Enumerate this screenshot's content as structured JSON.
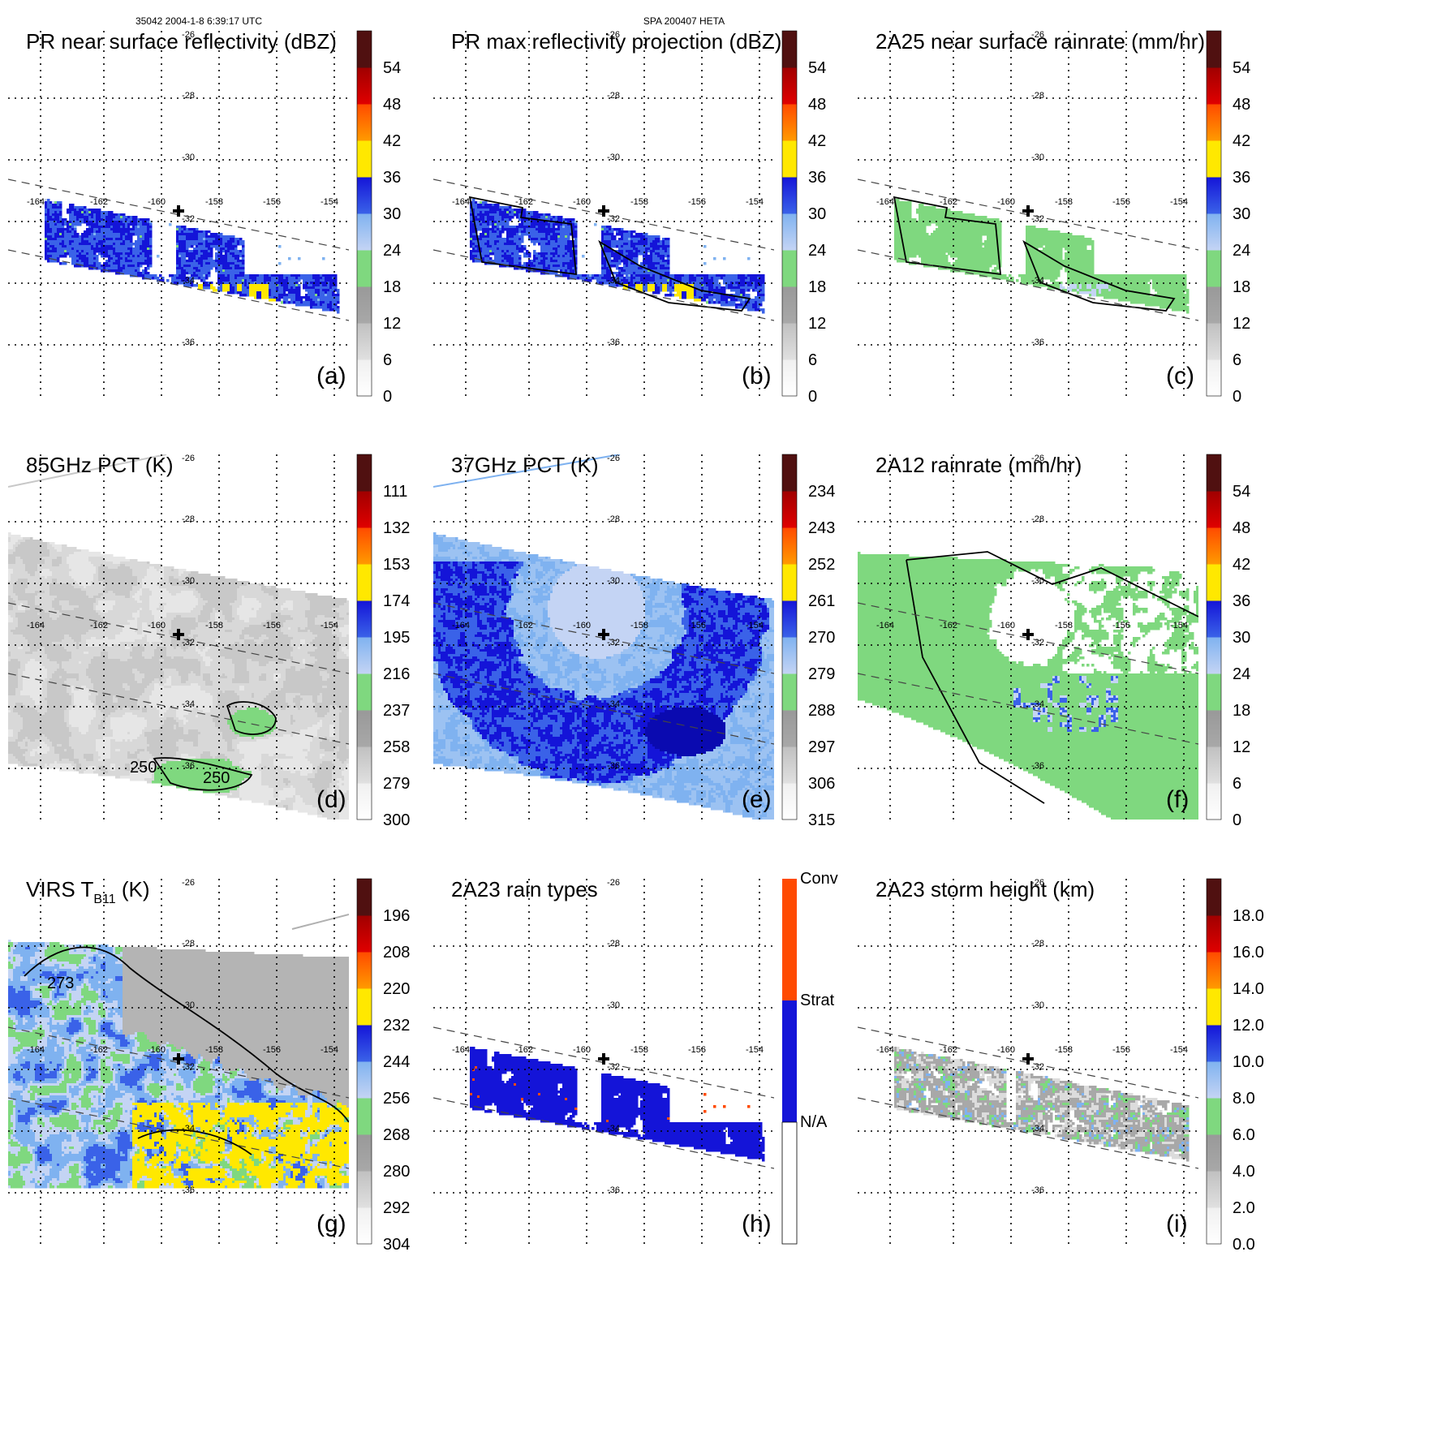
{
  "header": {
    "orbit_time": "35042 2004-1-8 6:39:17 UTC",
    "system": "SPA 200407 HETA"
  },
  "colors": {
    "white": "#ffffff",
    "gray_light": "#dcdcdc",
    "gray": "#a8a8a8",
    "green": "#7fd87f",
    "blue_pale": "#c4d4f4",
    "blue_light": "#7fb2f0",
    "blue": "#3a62e8",
    "blue_dark": "#1414d8",
    "yellow": "#ffe800",
    "orange": "#ff9a00",
    "red_orange": "#ff4a00",
    "red": "#e00000",
    "dark_red": "#a00000",
    "maroon": "#501010",
    "conv": "#ff4a00",
    "strat": "#1414d8",
    "pct85_line": "#c8c8c8",
    "pct37_line": "#7fb2f0",
    "virs_line": "#b0b0b0"
  },
  "map_grid": {
    "lon_labels": [
      "-164",
      "-162",
      "-160",
      "-158",
      "-156",
      "-154"
    ],
    "lat_labels": [
      "-26",
      "-28",
      "-30",
      "-32",
      "-34",
      "-36"
    ],
    "center_marker": "cross-marker"
  },
  "panels": [
    {
      "id": "a",
      "title": "PR near surface reflectivity (dBZ)",
      "letter": "(a)",
      "field": "reflectivity",
      "swath": "narrow",
      "contours": false,
      "colorbar": {
        "type": "gradient",
        "ticks": [
          "0",
          "6",
          "12",
          "18",
          "24",
          "30",
          "36",
          "42",
          "48",
          "54"
        ]
      }
    },
    {
      "id": "b",
      "title": "PR max reflectivity projection (dBZ)",
      "letter": "(b)",
      "field": "reflectivity",
      "swath": "narrow",
      "contours": true,
      "colorbar": {
        "type": "gradient",
        "ticks": [
          "0",
          "6",
          "12",
          "18",
          "24",
          "30",
          "36",
          "42",
          "48",
          "54"
        ]
      }
    },
    {
      "id": "c",
      "title": "2A25 near surface rainrate (mm/hr)",
      "letter": "(c)",
      "field": "rainrate",
      "swath": "narrow",
      "contours": true,
      "colorbar": {
        "type": "gradient",
        "ticks": [
          "0",
          "6",
          "12",
          "18",
          "24",
          "30",
          "36",
          "42",
          "48",
          "54"
        ]
      }
    },
    {
      "id": "d",
      "title": "85GHz PCT (K)",
      "letter": "(d)",
      "field": "pct85",
      "swath": "wide",
      "contours": true,
      "contour_labels": [
        "250",
        "250"
      ],
      "colorbar": {
        "type": "gradient",
        "ticks": [
          "300",
          "279",
          "258",
          "237",
          "216",
          "195",
          "174",
          "153",
          "132",
          "111"
        ]
      }
    },
    {
      "id": "e",
      "title": "37GHz PCT (K)",
      "letter": "(e)",
      "field": "pct37",
      "swath": "wide",
      "contours": false,
      "colorbar": {
        "type": "gradient",
        "ticks": [
          "315",
          "306",
          "297",
          "288",
          "279",
          "270",
          "261",
          "252",
          "243",
          "234"
        ]
      }
    },
    {
      "id": "f",
      "title": "2A12 rainrate (mm/hr)",
      "letter": "(f)",
      "field": "rain2a12",
      "swath": "wide",
      "contours": true,
      "colorbar": {
        "type": "gradient",
        "ticks": [
          "0",
          "6",
          "12",
          "18",
          "24",
          "30",
          "36",
          "42",
          "48",
          "54"
        ]
      }
    },
    {
      "id": "g",
      "title_main": "VIRS T",
      "title_sub": "B11",
      "title_unit": " (K)",
      "letter": "(g)",
      "field": "virs",
      "swath": "wide",
      "contours": true,
      "contour_labels": [
        "273"
      ],
      "colorbar": {
        "type": "gradient",
        "ticks": [
          "304",
          "292",
          "280",
          "268",
          "256",
          "244",
          "232",
          "220",
          "208",
          "196"
        ]
      }
    },
    {
      "id": "h",
      "title": "2A23 rain types",
      "letter": "(h)",
      "field": "raintype",
      "swath": "narrow",
      "contours": false,
      "colorbar": {
        "type": "categorical",
        "ticks": [
          "N/A",
          "Strat",
          "Conv"
        ]
      }
    },
    {
      "id": "i",
      "title": "2A23 storm height (km)",
      "letter": "(i)",
      "field": "height",
      "swath": "narrow",
      "contours": false,
      "colorbar": {
        "type": "gradient",
        "ticks": [
          "0.0",
          "2.0",
          "4.0",
          "6.0",
          "8.0",
          "10.0",
          "12.0",
          "14.0",
          "16.0",
          "18.0"
        ]
      }
    }
  ]
}
